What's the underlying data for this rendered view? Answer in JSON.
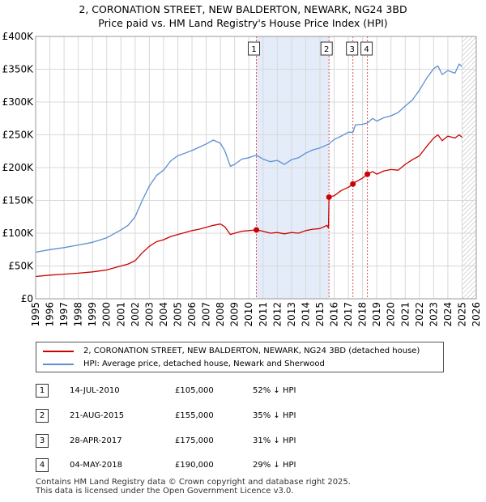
{
  "title_line1": "2, CORONATION STREET, NEW BALDERTON, NEWARK, NG24 3BD",
  "title_line2": "Price paid vs. HM Land Registry's House Price Index (HPI)",
  "colors": {
    "property": "#cc0000",
    "hpi": "#5b8fd4",
    "shade": "#e4ecfa",
    "grid": "#d8d8d8",
    "vline": "#e05050"
  },
  "chart_data": {
    "type": "line",
    "xlim": [
      1995,
      2026
    ],
    "ylim": [
      0,
      400000
    ],
    "y_ticks": [
      {
        "value": 0,
        "label": "£0"
      },
      {
        "value": 50000,
        "label": "£50K"
      },
      {
        "value": 100000,
        "label": "£100K"
      },
      {
        "value": 150000,
        "label": "£150K"
      },
      {
        "value": 200000,
        "label": "£200K"
      },
      {
        "value": 250000,
        "label": "£250K"
      },
      {
        "value": 300000,
        "label": "£300K"
      },
      {
        "value": 350000,
        "label": "£350K"
      },
      {
        "value": 400000,
        "label": "£400K"
      }
    ],
    "x_ticks": [
      "1995",
      "1996",
      "1997",
      "1998",
      "1999",
      "2000",
      "2001",
      "2002",
      "2003",
      "2004",
      "2005",
      "2006",
      "2007",
      "2008",
      "2009",
      "2010",
      "2011",
      "2012",
      "2013",
      "2014",
      "2015",
      "2016",
      "2017",
      "2018",
      "2019",
      "2020",
      "2021",
      "2022",
      "2023",
      "2024",
      "2025",
      "2026"
    ],
    "shaded_range": [
      2010.53,
      2015.64
    ],
    "future_hatch_from": 2025.0,
    "series": [
      {
        "name": "2, CORONATION STREET, NEW BALDERTON, NEWARK, NG24 3BD (detached house)",
        "x": [
          1995.0,
          1996.0,
          1997.0,
          1998.0,
          1999.0,
          2000.0,
          2001.0,
          2001.5,
          2002.0,
          2002.5,
          2003.0,
          2003.5,
          2004.0,
          2004.5,
          2005.0,
          2005.5,
          2006.0,
          2006.5,
          2007.0,
          2007.5,
          2008.0,
          2008.3,
          2008.7,
          2009.0,
          2009.5,
          2010.0,
          2010.53,
          2011.0,
          2011.5,
          2012.0,
          2012.5,
          2013.0,
          2013.5,
          2014.0,
          2014.5,
          2015.0,
          2015.5,
          2015.6,
          2015.64,
          2016.0,
          2016.5,
          2017.0,
          2017.32,
          2017.5,
          2018.0,
          2018.34,
          2018.7,
          2019.0,
          2019.5,
          2020.0,
          2020.5,
          2021.0,
          2021.5,
          2022.0,
          2022.5,
          2023.0,
          2023.3,
          2023.6,
          2024.0,
          2024.5,
          2024.8,
          2025.0
        ],
        "values": [
          34000,
          36000,
          37500,
          39000,
          41000,
          44000,
          50000,
          53000,
          58000,
          70000,
          80000,
          87000,
          90000,
          95000,
          98000,
          101000,
          104000,
          106000,
          109000,
          112000,
          114000,
          110000,
          98000,
          100000,
          103000,
          104000,
          105000,
          103000,
          100000,
          101000,
          99000,
          101000,
          100000,
          104000,
          106000,
          107000,
          112000,
          108000,
          155000,
          157000,
          165000,
          170000,
          175000,
          178000,
          184000,
          190000,
          194000,
          190000,
          195000,
          197000,
          196000,
          205000,
          212000,
          218000,
          232000,
          245000,
          250000,
          241000,
          248000,
          245000,
          250000,
          246000
        ]
      },
      {
        "name": "HPI: Average price, detached house, Newark and Sherwood",
        "x": [
          1995.0,
          1996.0,
          1997.0,
          1998.0,
          1999.0,
          2000.0,
          2001.0,
          2001.5,
          2002.0,
          2002.5,
          2003.0,
          2003.5,
          2004.0,
          2004.5,
          2005.0,
          2005.5,
          2006.0,
          2006.5,
          2007.0,
          2007.5,
          2008.0,
          2008.3,
          2008.7,
          2009.0,
          2009.5,
          2010.0,
          2010.53,
          2011.0,
          2011.5,
          2012.0,
          2012.5,
          2013.0,
          2013.5,
          2014.0,
          2014.5,
          2015.0,
          2015.64,
          2016.0,
          2016.5,
          2017.0,
          2017.32,
          2017.5,
          2018.0,
          2018.34,
          2018.7,
          2019.0,
          2019.5,
          2020.0,
          2020.5,
          2021.0,
          2021.5,
          2022.0,
          2022.5,
          2023.0,
          2023.3,
          2023.6,
          2024.0,
          2024.5,
          2024.8,
          2025.0
        ],
        "values": [
          71000,
          75000,
          78000,
          82000,
          86000,
          93000,
          105000,
          112000,
          125000,
          150000,
          172000,
          188000,
          196000,
          210000,
          218000,
          222000,
          226000,
          231000,
          236000,
          242000,
          237000,
          226000,
          202000,
          205000,
          213000,
          215000,
          219000,
          213000,
          209000,
          211000,
          205000,
          212000,
          215000,
          222000,
          227000,
          230000,
          236000,
          243000,
          248000,
          254000,
          254000,
          265000,
          266000,
          268000,
          275000,
          271000,
          276000,
          279000,
          284000,
          294000,
          303000,
          318000,
          336000,
          351000,
          355000,
          342000,
          348000,
          344000,
          358000,
          354000
        ]
      }
    ],
    "sales": [
      {
        "num": "1",
        "x": 2010.53,
        "value": 105000
      },
      {
        "num": "2",
        "x": 2015.64,
        "value": 155000
      },
      {
        "num": "3",
        "x": 2017.32,
        "value": 175000
      },
      {
        "num": "4",
        "x": 2018.34,
        "value": 190000
      }
    ]
  },
  "legend": {
    "property": "2, CORONATION STREET, NEW BALDERTON, NEWARK, NG24 3BD (detached house)",
    "hpi": "HPI: Average price, detached house, Newark and Sherwood"
  },
  "table": [
    {
      "num": "1",
      "date": "14-JUL-2010",
      "price": "£105,000",
      "hpi": "52% ↓ HPI"
    },
    {
      "num": "2",
      "date": "21-AUG-2015",
      "price": "£155,000",
      "hpi": "35% ↓ HPI"
    },
    {
      "num": "3",
      "date": "28-APR-2017",
      "price": "£175,000",
      "hpi": "31% ↓ HPI"
    },
    {
      "num": "4",
      "date": "04-MAY-2018",
      "price": "£190,000",
      "hpi": "29% ↓ HPI"
    }
  ],
  "footer": {
    "line1": "Contains HM Land Registry data © Crown copyright and database right 2025.",
    "line2": "This data is licensed under the Open Government Licence v3.0."
  }
}
